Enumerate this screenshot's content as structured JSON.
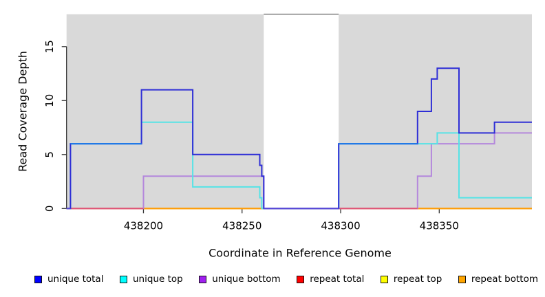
{
  "figure": {
    "region_fill": "#d9d9d9",
    "gap_top_line_color": "#8a8a8a",
    "axis_color": "#333333",
    "overlap_color": "#1f7ce8"
  },
  "chart_data": {
    "type": "line",
    "subtype": "step-coverage",
    "title": "",
    "xlabel": "Coordinate in Reference Genome",
    "ylabel": "Read Coverage Depth",
    "xlim": [
      438161,
      438397
    ],
    "ylim": [
      0,
      18
    ],
    "xticks": [
      438200,
      438250,
      438300,
      438350
    ],
    "yticks": [
      0,
      5,
      10,
      15
    ],
    "grid": false,
    "legend_position": "bottom",
    "shaded_regions": [
      {
        "start": 438161,
        "end": 438261
      },
      {
        "start": 438299,
        "end": 438397
      }
    ],
    "gap_top_line": {
      "start": 438261,
      "end": 438299
    },
    "series": [
      {
        "name": "repeat total",
        "color": "#cc1122",
        "steps": [
          [
            438161,
            0
          ]
        ]
      },
      {
        "name": "repeat top",
        "color": "#ffee00",
        "steps": [
          [
            438161,
            0
          ]
        ]
      },
      {
        "name": "repeat bottom",
        "color": "#ff9d0a",
        "steps": [
          [
            438161,
            0
          ]
        ]
      },
      {
        "name": "unique bottom",
        "color": "#b487dc",
        "zero_color": "#e05579",
        "steps": [
          [
            438161,
            0
          ],
          [
            438200,
            3
          ],
          [
            438261,
            0
          ],
          [
            438339,
            3
          ],
          [
            438346,
            6
          ],
          [
            438378,
            7
          ]
        ]
      },
      {
        "name": "unique top",
        "color": "#55e3e6",
        "steps": [
          [
            438161,
            0
          ],
          [
            438163,
            6
          ],
          [
            438199,
            8
          ],
          [
            438225,
            2
          ],
          [
            438259,
            1
          ],
          [
            438260,
            0
          ],
          [
            438299,
            6
          ],
          [
            438349,
            7
          ],
          [
            438360,
            1
          ]
        ]
      },
      {
        "name": "unique total",
        "color": "#2e2ed6",
        "zero_color": "#5a49d8",
        "steps": [
          [
            438161,
            0
          ],
          [
            438163,
            6
          ],
          [
            438199,
            11
          ],
          [
            438225,
            5
          ],
          [
            438259,
            4
          ],
          [
            438260,
            3
          ],
          [
            438261,
            0
          ],
          [
            438299,
            6
          ],
          [
            438339,
            9
          ],
          [
            438346,
            12
          ],
          [
            438349,
            13
          ],
          [
            438360,
            7
          ],
          [
            438378,
            8
          ]
        ]
      }
    ],
    "overlap_pair": [
      "unique total",
      "unique top"
    ]
  },
  "legend": {
    "items": [
      {
        "label": "unique total",
        "color": "#0000ff"
      },
      {
        "label": "unique top",
        "color": "#00ffff"
      },
      {
        "label": "unique bottom",
        "color": "#a020f0"
      },
      {
        "label": "repeat total",
        "color": "#ff0000"
      },
      {
        "label": "repeat top",
        "color": "#ffff00"
      },
      {
        "label": "repeat bottom",
        "color": "#ffa500"
      }
    ]
  }
}
